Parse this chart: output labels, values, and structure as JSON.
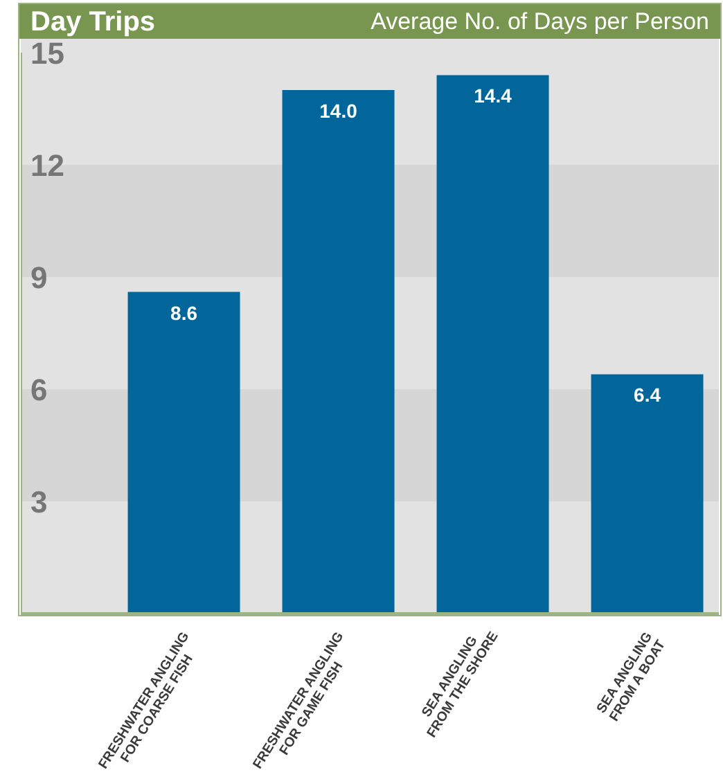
{
  "chart_data": {
    "type": "bar",
    "title": "Day Trips",
    "subtitle": "Average No. of Days per Person",
    "categories": [
      "FRESHWATER ANGLING FOR COARSE FISH",
      "FRESHWATER ANGLING FOR GAME FISH",
      "SEA ANGLING FROM THE SHORE",
      "SEA ANGLING FROM A BOAT"
    ],
    "values": [
      8.6,
      14.0,
      14.4,
      6.4
    ],
    "value_labels": [
      "8.6",
      "14.0",
      "14.4",
      "6.4"
    ],
    "color": "#03669b",
    "ylim": [
      0,
      15
    ],
    "yticks": [
      3,
      6,
      9,
      12,
      15
    ],
    "bands": [
      {
        "axis": "y",
        "from": 3,
        "to": 6,
        "color": "#d6d6d6"
      },
      {
        "axis": "y",
        "from": 9,
        "to": 12,
        "color": "#d6d6d6"
      }
    ]
  }
}
